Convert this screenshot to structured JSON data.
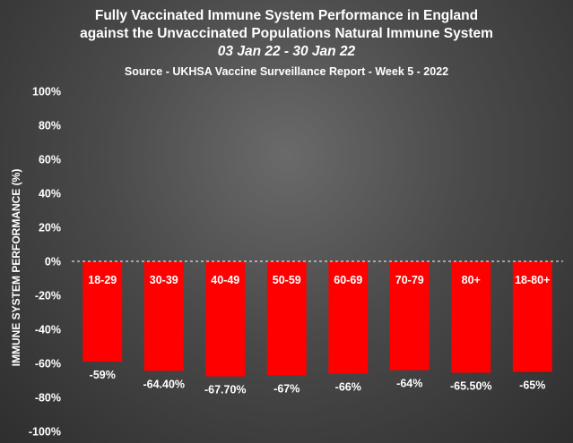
{
  "chart_data": {
    "type": "bar",
    "title_line1": "Fully Vaccinated Immune System Performance in England",
    "title_line2": "against the Unvaccinated Populations Natural Immune System",
    "subtitle_dates": "03 Jan 22 - 30 Jan 22",
    "source": "Source - UKHSA Vaccine Surveillance Report - Week 5 - 2022",
    "ylabel": "IMMUNE SYSTEM PERFORMANCE  (%)",
    "ylim": [
      -100,
      100
    ],
    "yticks": [
      100,
      80,
      60,
      40,
      20,
      0,
      -20,
      -40,
      -60,
      -80,
      -100
    ],
    "ytick_labels": [
      "100%",
      "80%",
      "60%",
      "40%",
      "20%",
      "0%",
      "-20%",
      "-40%",
      "-60%",
      "-80%",
      "-100%"
    ],
    "categories": [
      "18-29",
      "30-39",
      "40-49",
      "50-59",
      "60-69",
      "70-79",
      "80+",
      "18-80+"
    ],
    "values": [
      -59,
      -64.4,
      -67.7,
      -67,
      -66,
      -64,
      -65.5,
      -65
    ],
    "data_labels": [
      "-59%",
      "-64.40%",
      "-67.70%",
      "-67%",
      "-66%",
      "-64%",
      "-65.50%",
      "-65%"
    ],
    "bar_color": "#ff0000",
    "zero_line": "dashed",
    "grid": false,
    "legend": "none"
  }
}
